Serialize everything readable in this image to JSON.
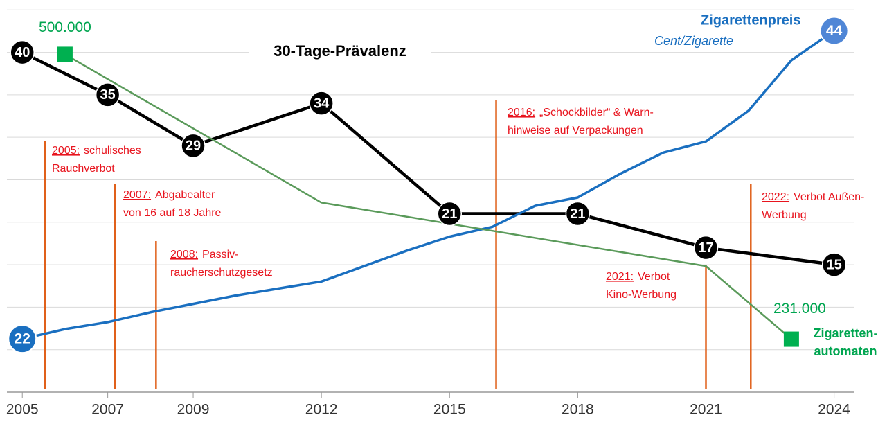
{
  "chart_data": {
    "type": "line",
    "xlim": [
      2004.64,
      2024.46
    ],
    "xticks": [
      2005,
      2007,
      2009,
      2012,
      2015,
      2018,
      2021,
      2024
    ],
    "ylim": [
      0,
      46
    ],
    "yticks": [
      0,
      5,
      10,
      15,
      20,
      25,
      30,
      35,
      40,
      45
    ],
    "y2lim": [
      18.2,
      46.1
    ],
    "y3lim": [
      181000,
      550000
    ],
    "grid": true,
    "series": [
      {
        "name": "30-Tage-Prävalenz",
        "color": "#000000",
        "x": [
          2005,
          2007,
          2009,
          2012,
          2015,
          2018,
          2021,
          2024
        ],
        "values": [
          40,
          35,
          29,
          34,
          21,
          21,
          17,
          15
        ]
      },
      {
        "name": "Zigarettenpreis",
        "unit": "Cent/Zigarette",
        "color": "#1a6fc0",
        "axis": "y2",
        "x": [
          2005,
          2006,
          2007,
          2008,
          2009,
          2010,
          2011,
          2012,
          2013,
          2014,
          2015,
          2016,
          2017,
          2018,
          2019,
          2020,
          2021,
          2022,
          2023,
          2024
        ],
        "values": [
          22,
          22.7,
          23.2,
          23.9,
          24.5,
          25.1,
          25.6,
          26.1,
          27.2,
          28.3,
          29.3,
          30.0,
          31.5,
          32.1,
          33.8,
          35.3,
          36.1,
          38.3,
          41.9,
          44
        ],
        "value_labels": [
          "22",
          null,
          null,
          null,
          null,
          null,
          null,
          null,
          null,
          null,
          null,
          null,
          null,
          null,
          null,
          null,
          null,
          null,
          null,
          "44"
        ]
      },
      {
        "name": [
          "Zigaretten-",
          "automaten"
        ],
        "color": "#5a9a5a",
        "axis": "y3",
        "x": [
          2006,
          2012,
          2021,
          2023
        ],
        "values": [
          500000,
          360000,
          300000,
          231000
        ],
        "value_labels": [
          "500.000",
          null,
          null,
          "231.000"
        ]
      }
    ],
    "annotations": [
      {
        "x": 2005.53,
        "year": "2005:",
        "lines": [
          "schulisches",
          "Rauchverbot"
        ]
      },
      {
        "x": 2007.17,
        "year": "2007:",
        "lines": [
          "Abgabealter",
          "von 16 auf 18 Jahre"
        ]
      },
      {
        "x": 2008.13,
        "year": "2008:",
        "lines": [
          "Passiv-",
          "raucherschutzgesetz"
        ]
      },
      {
        "x": 2016.09,
        "year": "2016:",
        "lines": [
          "„Schockbilder“ & Warn-",
          "hinweise auf Verpackungen"
        ]
      },
      {
        "x": 2021.0,
        "year": "2021:",
        "lines": [
          "Verbot",
          "Kino-Werbung"
        ]
      },
      {
        "x": 2022.05,
        "year": "2022:",
        "lines": [
          "Verbot Außen-",
          "Werbung"
        ]
      }
    ]
  }
}
